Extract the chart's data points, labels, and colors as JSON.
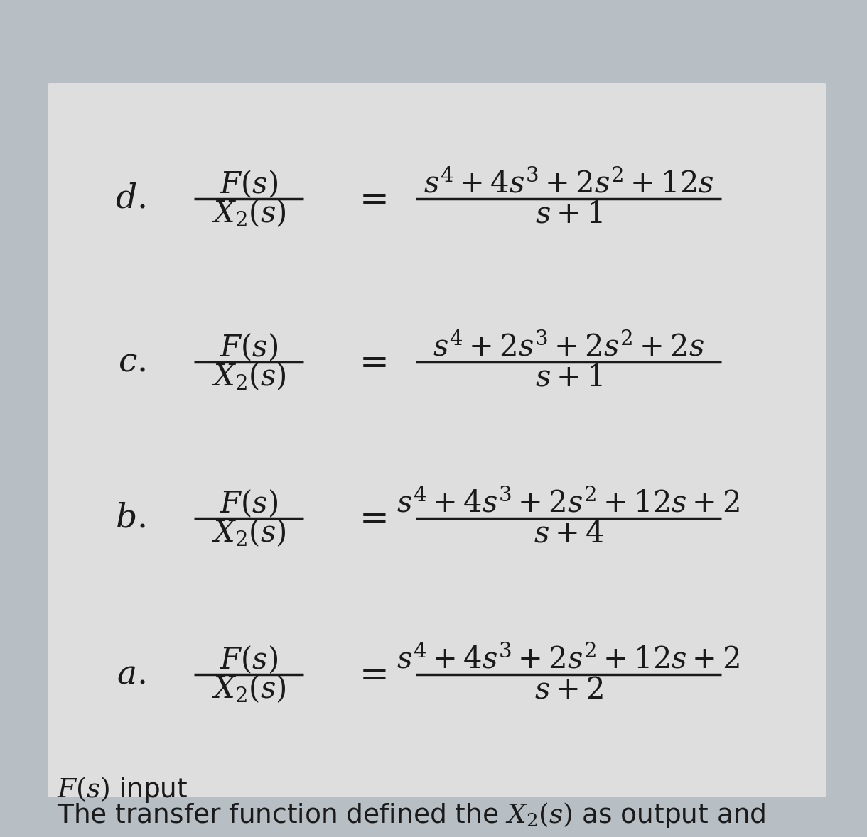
{
  "bg_color": "#b8bfc4",
  "box_color": "#dddedd",
  "text_color": "#1a1a1a",
  "title_line1": "The transfer function defined the $X_2(s)$ as output and",
  "title_line2": "$F(s)$ input",
  "options": [
    {
      "label": "a.",
      "numerator": "s+2",
      "denominator": "s^4+4s^3+2s^2+12s+2"
    },
    {
      "label": "b.",
      "numerator": "s+4",
      "denominator": "s^4+4s^3+2s^2+12s+2"
    },
    {
      "label": "c.",
      "numerator": "s+1",
      "denominator": "s^4+2s^3+2s^2+2s"
    },
    {
      "label": "d.",
      "numerator": "s+1",
      "denominator": "s^4+4s^3+2s^2+12s"
    }
  ]
}
